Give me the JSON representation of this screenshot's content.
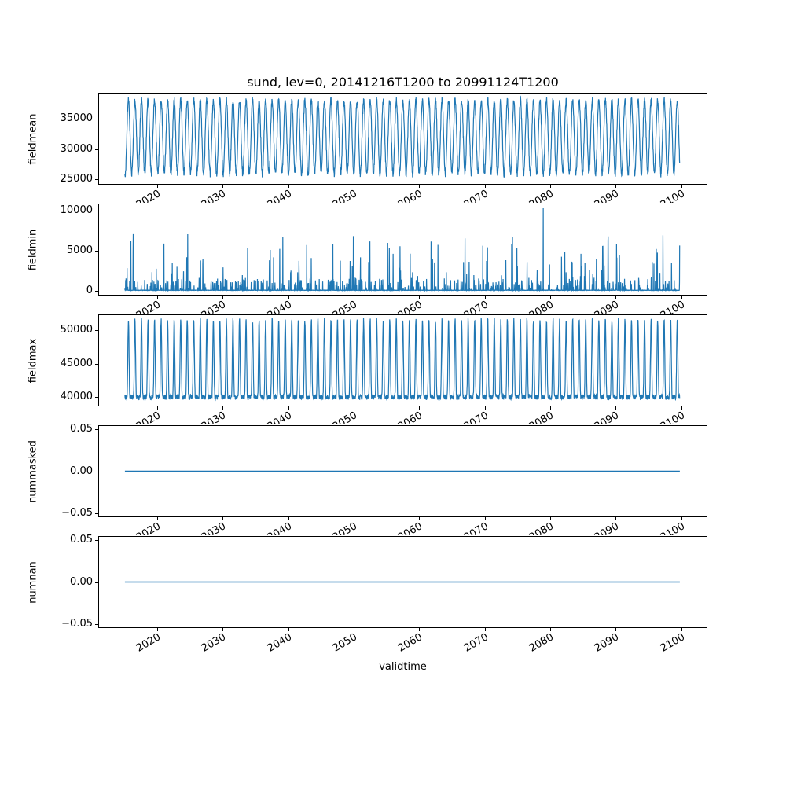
{
  "figure": {
    "title": "sund, lev=0, 20141216T1200 to 20991124T1200",
    "xlabel": "validtime",
    "background": "#ffffff",
    "line_color": "#1f77b4",
    "xlim": [
      2011,
      2104
    ],
    "x_start": 2014.96,
    "x_end": 2099.9,
    "xtick_values": [
      2020,
      2030,
      2040,
      2050,
      2060,
      2070,
      2080,
      2090,
      2100
    ],
    "xtick_labels": [
      "2020",
      "2030",
      "2040",
      "2050",
      "2060",
      "2070",
      "2080",
      "2090",
      "2100"
    ]
  },
  "chart_data": [
    {
      "type": "line",
      "ylabel": "fieldmean",
      "ylim": [
        24100,
        39300
      ],
      "ytick_values": [
        25000,
        30000,
        35000
      ],
      "ytick_labels": [
        "25000",
        "30000",
        "35000"
      ],
      "pattern": {
        "kind": "seasonal",
        "min": 25800,
        "max": 38200,
        "noise": 600,
        "seed": 11
      }
    },
    {
      "type": "line",
      "ylabel": "fieldmin",
      "ylim": [
        -550,
        10900
      ],
      "ytick_values": [
        0,
        5000,
        10000
      ],
      "ytick_labels": [
        "0",
        "5000",
        "10000"
      ],
      "pattern": {
        "kind": "spikes",
        "base": 40,
        "spike_prob": 0.035,
        "minor_prob": 0.12,
        "minor_max": 1500,
        "spike_min": 1500,
        "spike_max": 7600,
        "peak": {
          "x": 2079,
          "value": 10500
        },
        "seed": 7
      }
    },
    {
      "type": "line",
      "ylabel": "fieldmax",
      "ylim": [
        38600,
        52400
      ],
      "ytick_values": [
        40000,
        45000,
        50000
      ],
      "ytick_labels": [
        "40000",
        "45000",
        "50000"
      ],
      "pattern": {
        "kind": "peaks",
        "base": 39900,
        "peak_value": 51700,
        "sharpness": 3,
        "noise": 400,
        "seed": 3
      }
    },
    {
      "type": "line",
      "ylabel": "nummasked",
      "ylim": [
        -0.055,
        0.055
      ],
      "ytick_values": [
        -0.05,
        0,
        0.05
      ],
      "ytick_labels": [
        "−0.05",
        "0.00",
        "0.05"
      ],
      "pattern": {
        "kind": "constant",
        "value": 0
      }
    },
    {
      "type": "line",
      "ylabel": "numnan",
      "ylim": [
        -0.055,
        0.055
      ],
      "ytick_values": [
        -0.05,
        0,
        0.05
      ],
      "ytick_labels": [
        "−0.05",
        "0.00",
        "0.05"
      ],
      "pattern": {
        "kind": "constant",
        "value": 0
      }
    }
  ]
}
